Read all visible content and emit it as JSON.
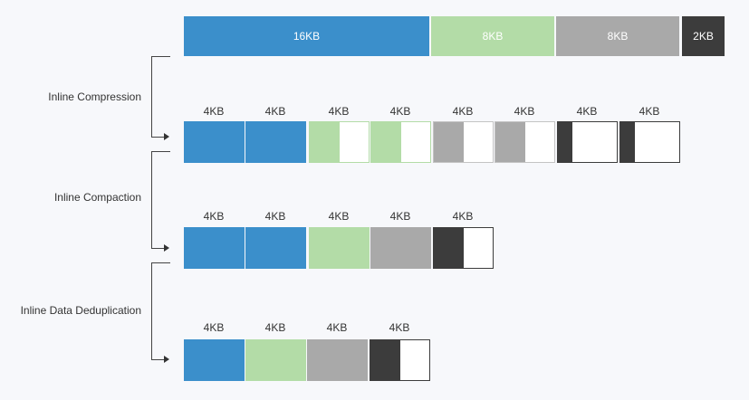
{
  "colors": {
    "blue": "#3b8fcb",
    "green": "#b3dca7",
    "gray": "#a9a9a9",
    "dark": "#3c3c3c",
    "white": "#ffffff"
  },
  "top_bar": {
    "seg_16kb": "16KB",
    "seg_8kb_green": "8KB",
    "seg_8kb_gray": "8KB",
    "seg_2kb": "2KB"
  },
  "stages": {
    "compression": "Inline Compression",
    "compaction": "Inline Compaction",
    "deduplication": "Inline Data Deduplication"
  },
  "row1_labels": [
    "4KB",
    "4KB",
    "4KB",
    "4KB",
    "4KB",
    "4KB",
    "4KB",
    "4KB"
  ],
  "row2_labels": [
    "4KB",
    "4KB",
    "4KB",
    "4KB",
    "4KB"
  ],
  "row3_labels": [
    "4KB",
    "4KB",
    "4KB",
    "4KB"
  ]
}
